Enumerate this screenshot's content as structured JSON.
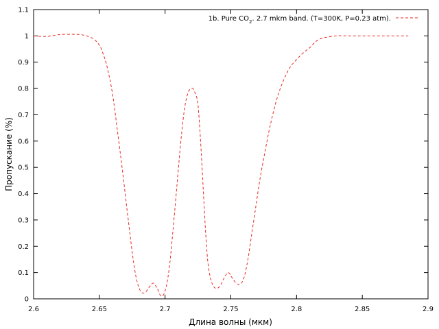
{
  "chart_data": {
    "type": "line",
    "title": "",
    "xlabel": "Длина волны (мкм)",
    "ylabel": "Пропускание (%)",
    "xlim": [
      2.6,
      2.9
    ],
    "ylim": [
      0,
      1.1
    ],
    "x_ticks": [
      "2.6",
      "2.65",
      "2.7",
      "2.75",
      "2.8",
      "2.85",
      "2.9"
    ],
    "y_ticks": [
      "0",
      "0.1",
      "0.2",
      "0.3",
      "0.4",
      "0.5",
      "0.6",
      "0.7",
      "0.8",
      "0.9",
      "1",
      "1.1"
    ],
    "grid": false,
    "legend_position": "top-right",
    "series": [
      {
        "name_parts": [
          "1b. Pure CO",
          "2",
          ". 2.7 mkm band. (T=300K, P=0.23 atm)."
        ],
        "color": "#e8271e",
        "dash": "dashed",
        "x": [
          2.6,
          2.61,
          2.62,
          2.63,
          2.638,
          2.645,
          2.65,
          2.653,
          2.656,
          2.66,
          2.664,
          2.668,
          2.672,
          2.676,
          2.679,
          2.682,
          2.685,
          2.688,
          2.691,
          2.694,
          2.697,
          2.7,
          2.703,
          2.706,
          2.709,
          2.712,
          2.715,
          2.718,
          2.721,
          2.723,
          2.725,
          2.727,
          2.729,
          2.731,
          2.733,
          2.736,
          2.739,
          2.742,
          2.745,
          2.748,
          2.751,
          2.754,
          2.757,
          2.76,
          2.763,
          2.766,
          2.769,
          2.772,
          2.776,
          2.78,
          2.785,
          2.79,
          2.795,
          2.8,
          2.805,
          2.81,
          2.815,
          2.82,
          2.83,
          2.84,
          2.85,
          2.86,
          2.87,
          2.885
        ],
        "y": [
          1.0,
          0.998,
          1.005,
          1.006,
          1.003,
          0.99,
          0.965,
          0.93,
          0.88,
          0.78,
          0.63,
          0.47,
          0.3,
          0.14,
          0.06,
          0.025,
          0.025,
          0.045,
          0.06,
          0.04,
          0.01,
          0.03,
          0.11,
          0.26,
          0.43,
          0.6,
          0.73,
          0.79,
          0.8,
          0.78,
          0.74,
          0.6,
          0.42,
          0.24,
          0.12,
          0.055,
          0.04,
          0.05,
          0.08,
          0.1,
          0.08,
          0.06,
          0.055,
          0.08,
          0.15,
          0.25,
          0.35,
          0.45,
          0.56,
          0.66,
          0.76,
          0.83,
          0.88,
          0.91,
          0.935,
          0.955,
          0.98,
          0.992,
          1.0,
          1.0,
          1.0,
          1.0,
          1.0,
          1.0
        ]
      }
    ]
  }
}
